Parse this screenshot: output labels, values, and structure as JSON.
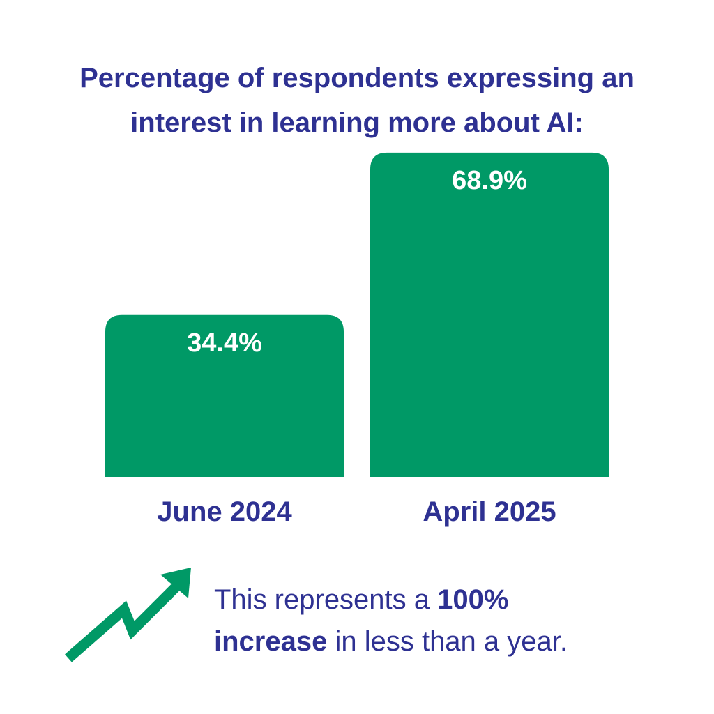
{
  "title": {
    "line1": "Percentage of respondents expressing an",
    "line2": "interest in learning more about AI:"
  },
  "chart_data": {
    "type": "bar",
    "title": "Percentage of respondents expressing an interest in learning more about AI:",
    "categories": [
      "June 2024",
      "April 2025"
    ],
    "values": [
      34.4,
      68.9
    ],
    "value_labels": [
      "34.4%",
      "68.9%"
    ],
    "unit": "%",
    "xlabel": "",
    "ylabel": "",
    "ylim": [
      0,
      80
    ],
    "grid": false,
    "colors": {
      "bar": "#009966",
      "bar_label": "#ffffff",
      "category_label": "#2e3192"
    }
  },
  "note": {
    "part1": "This represents a ",
    "bold1": "100%",
    "bold2": "increase",
    "part2": " in less than a year."
  },
  "icons": {
    "trend": "trend-up-arrow-icon"
  },
  "colors": {
    "text": "#2e3192",
    "accent": "#009966",
    "background": "#ffffff"
  }
}
